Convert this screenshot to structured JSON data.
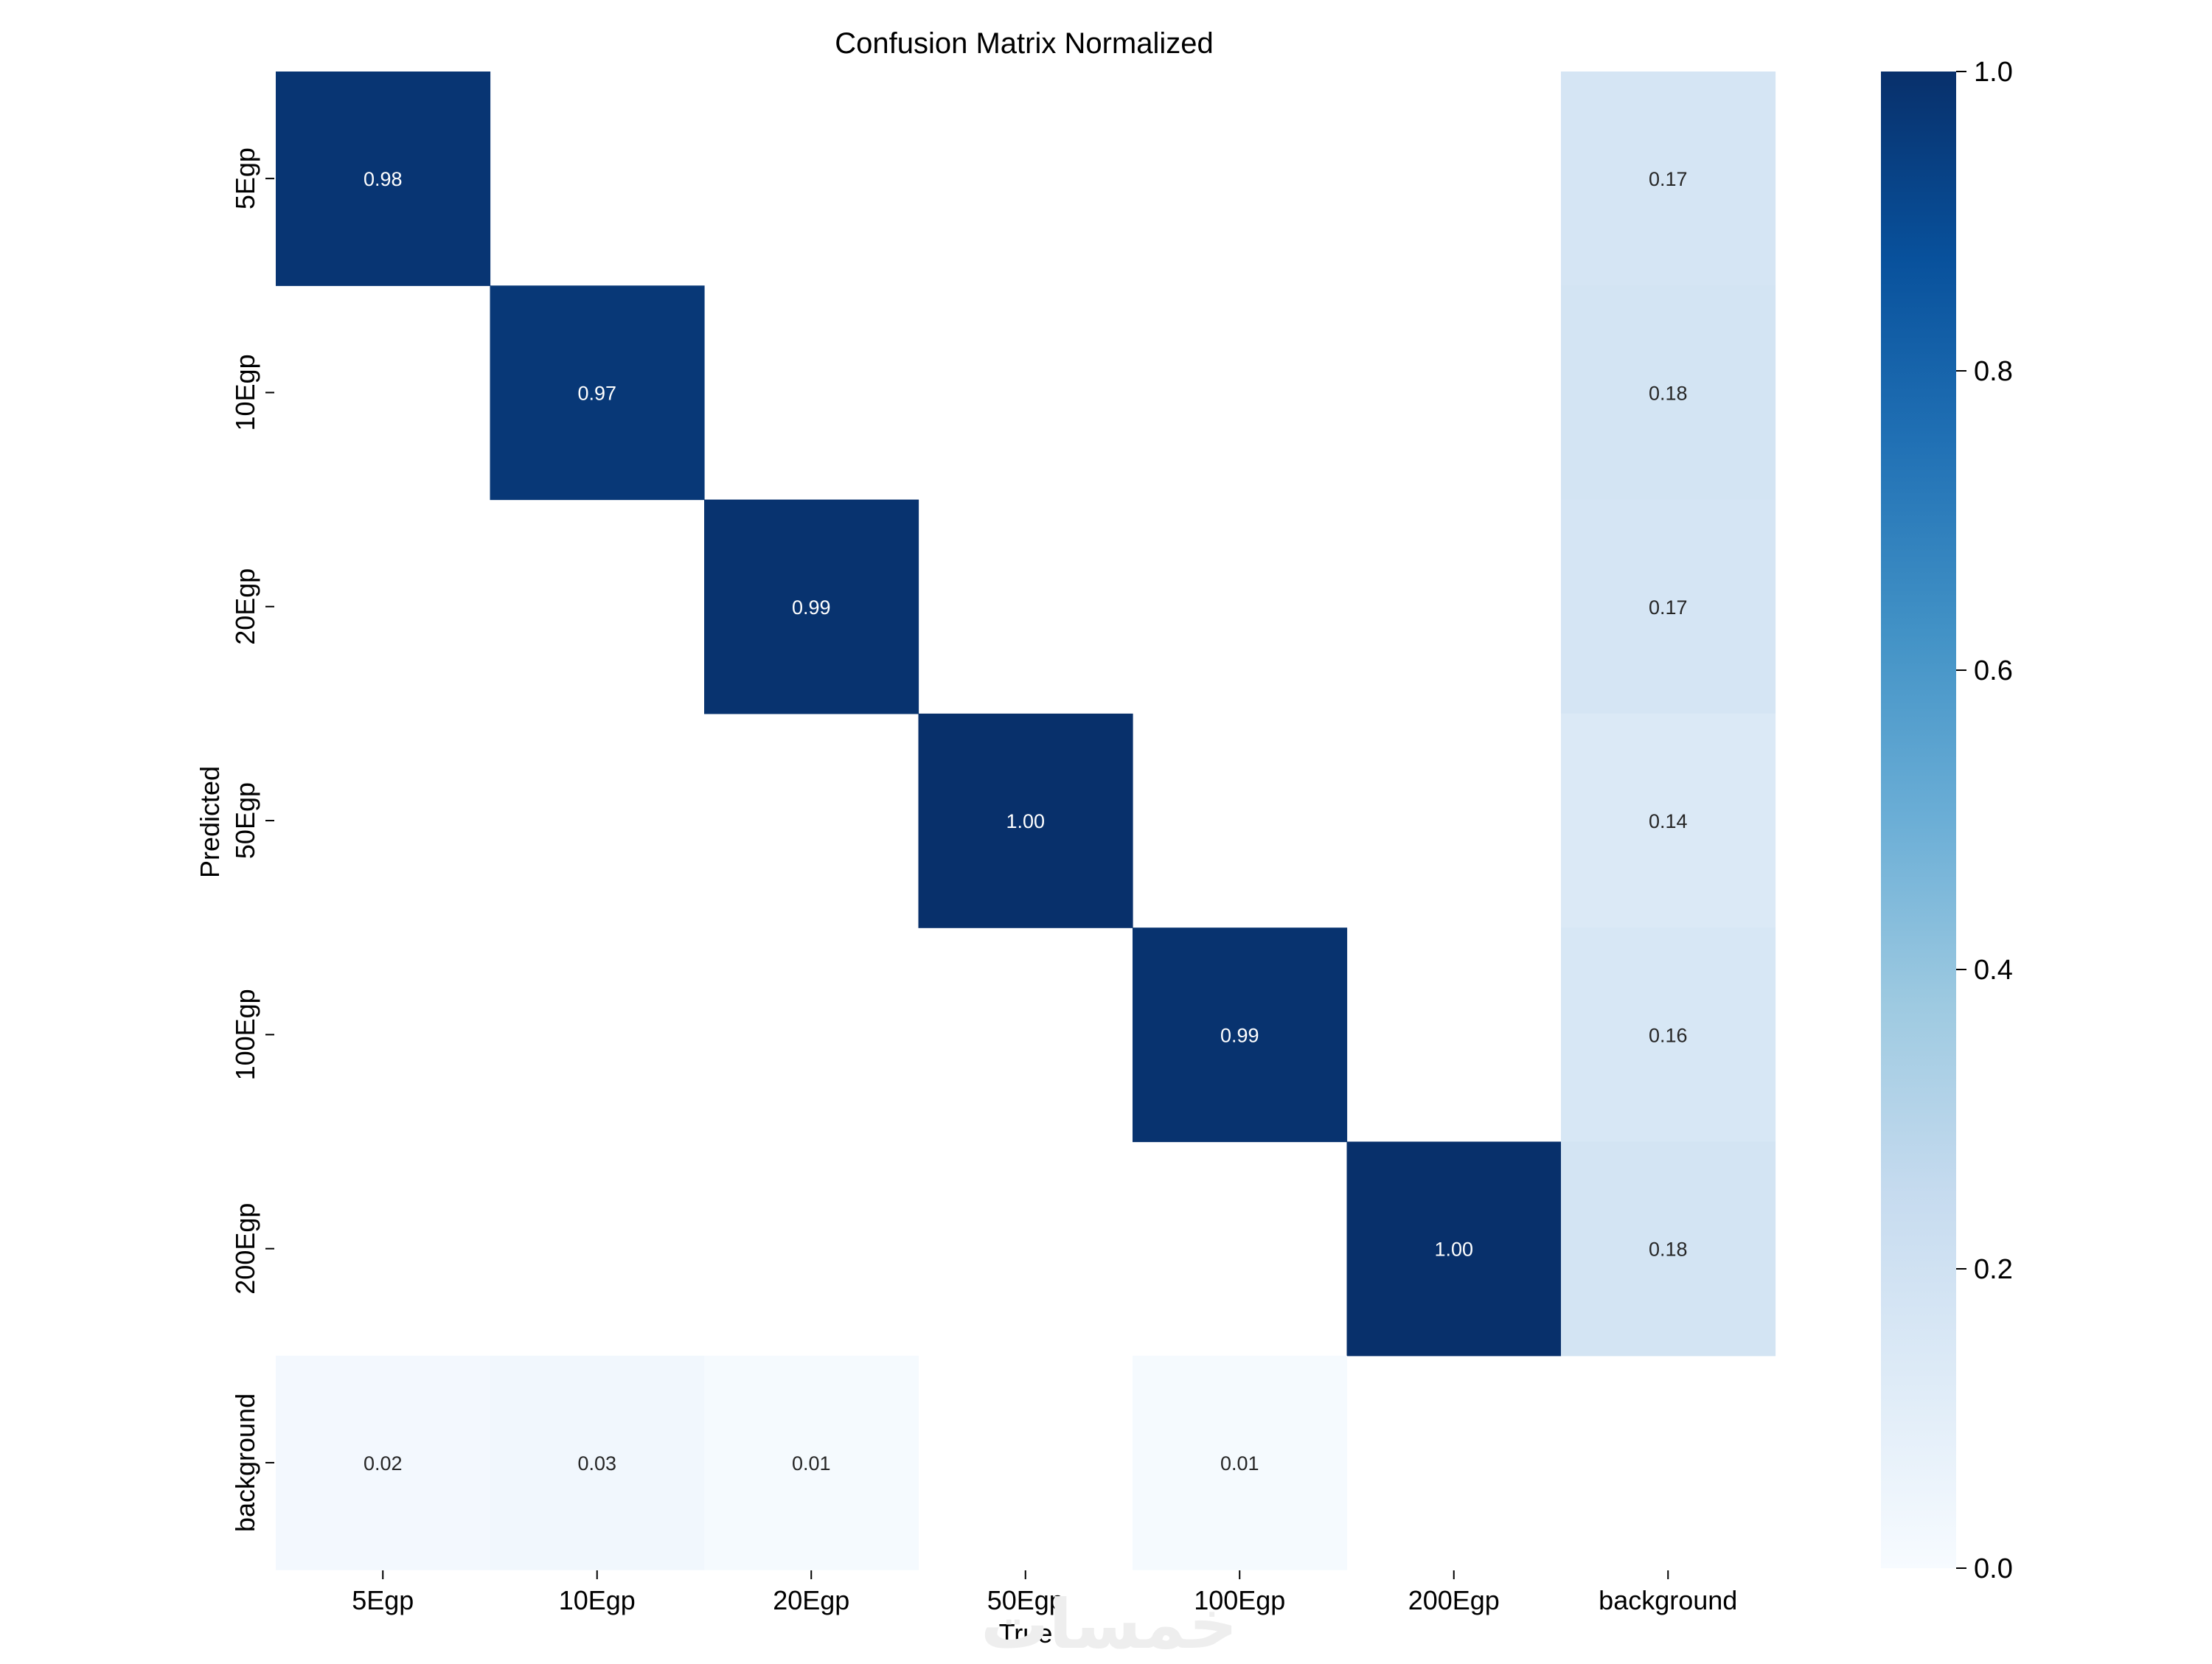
{
  "chart_data": {
    "type": "heatmap",
    "title": "Confusion Matrix Normalized",
    "xlabel": "True",
    "ylabel": "Predicted",
    "x_categories": [
      "5Egp",
      "10Egp",
      "20Egp",
      "50Egp",
      "100Egp",
      "200Egp",
      "background"
    ],
    "y_categories": [
      "5Egp",
      "10Egp",
      "20Egp",
      "50Egp",
      "100Egp",
      "200Egp",
      "background"
    ],
    "values": [
      [
        0.98,
        null,
        null,
        null,
        null,
        null,
        0.17
      ],
      [
        null,
        0.97,
        null,
        null,
        null,
        null,
        0.18
      ],
      [
        null,
        null,
        0.99,
        null,
        null,
        null,
        0.17
      ],
      [
        null,
        null,
        null,
        1.0,
        null,
        null,
        0.14
      ],
      [
        null,
        null,
        null,
        null,
        0.99,
        null,
        0.16
      ],
      [
        null,
        null,
        null,
        null,
        null,
        1.0,
        0.18
      ],
      [
        0.02,
        0.03,
        0.01,
        null,
        0.01,
        null,
        null
      ]
    ],
    "colorbar": {
      "range": [
        0.0,
        1.0
      ],
      "ticks": [
        "0.0",
        "0.2",
        "0.4",
        "0.6",
        "0.8",
        "1.0"
      ],
      "colormap": "Blues"
    }
  },
  "watermark": "خمسات"
}
